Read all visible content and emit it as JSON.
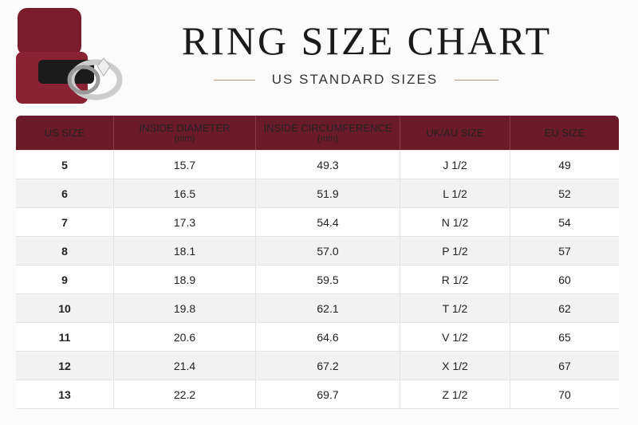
{
  "header": {
    "title": "RING SIZE CHART",
    "subtitle": "US STANDARD SIZES"
  },
  "table": {
    "columns": [
      {
        "label": "US SIZE"
      },
      {
        "label": "INSIDE DIAMETER",
        "unit": "(mm)"
      },
      {
        "label": "INSIDE CIRCUMFERENCE",
        "unit": "(mm)"
      },
      {
        "label": "UK/AU SIZE"
      },
      {
        "label": "EU SIZE"
      }
    ],
    "rows": [
      [
        "5",
        "15.7",
        "49.3",
        "J 1/2",
        "49"
      ],
      [
        "6",
        "16.5",
        "51.9",
        "L 1/2",
        "52"
      ],
      [
        "7",
        "17.3",
        "54.4",
        "N 1/2",
        "54"
      ],
      [
        "8",
        "18.1",
        "57.0",
        "P 1/2",
        "57"
      ],
      [
        "9",
        "18.9",
        "59.5",
        "R 1/2",
        "60"
      ],
      [
        "10",
        "19.8",
        "62.1",
        "T 1/2",
        "62"
      ],
      [
        "11",
        "20.6",
        "64.6",
        "V 1/2",
        "65"
      ],
      [
        "12",
        "21.4",
        "67.2",
        "X 1/2",
        "67"
      ],
      [
        "13",
        "22.2",
        "69.7",
        "Z 1/2",
        "70"
      ]
    ]
  }
}
